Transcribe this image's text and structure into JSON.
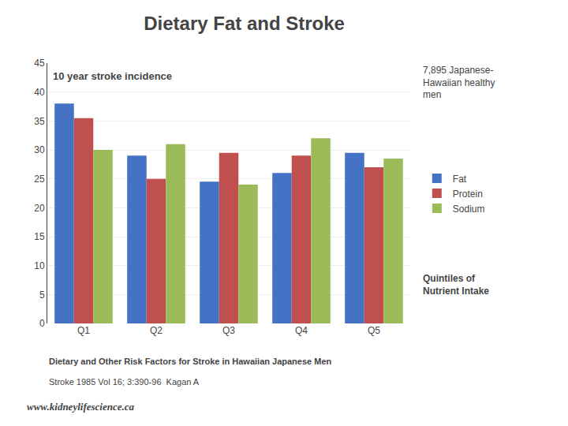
{
  "chart_data": {
    "type": "bar",
    "title": "Dietary Fat and Stroke",
    "subtitle": "10 year stroke incidence",
    "categories": [
      "Q1",
      "Q2",
      "Q3",
      "Q4",
      "Q5"
    ],
    "series": [
      {
        "name": "Fat",
        "color": "#4472C4",
        "values": [
          38.0,
          29.0,
          24.5,
          26.0,
          29.5
        ]
      },
      {
        "name": "Protein",
        "color": "#C0504D",
        "values": [
          35.5,
          25.0,
          29.5,
          29.0,
          27.0
        ]
      },
      {
        "name": "Sodium",
        "color": "#9BBB59",
        "values": [
          30.0,
          31.0,
          24.0,
          32.0,
          28.5
        ]
      }
    ],
    "ylim": [
      0,
      45
    ],
    "yticks": [
      0,
      5,
      10,
      15,
      20,
      25,
      30,
      35,
      40,
      45
    ],
    "grid": true,
    "legend": "right",
    "annotations": [
      "7,895 Japanese-\nHawaiian healthy\nmen",
      "Quintiles of\nNutrient Intake",
      "Dietary and Other Risk Factors for Stroke in Hawaiian Japanese Men",
      "Stroke 1985 Vol 16; 3:390-96  Kagan A",
      "www.kidneylifescience.ca"
    ]
  }
}
